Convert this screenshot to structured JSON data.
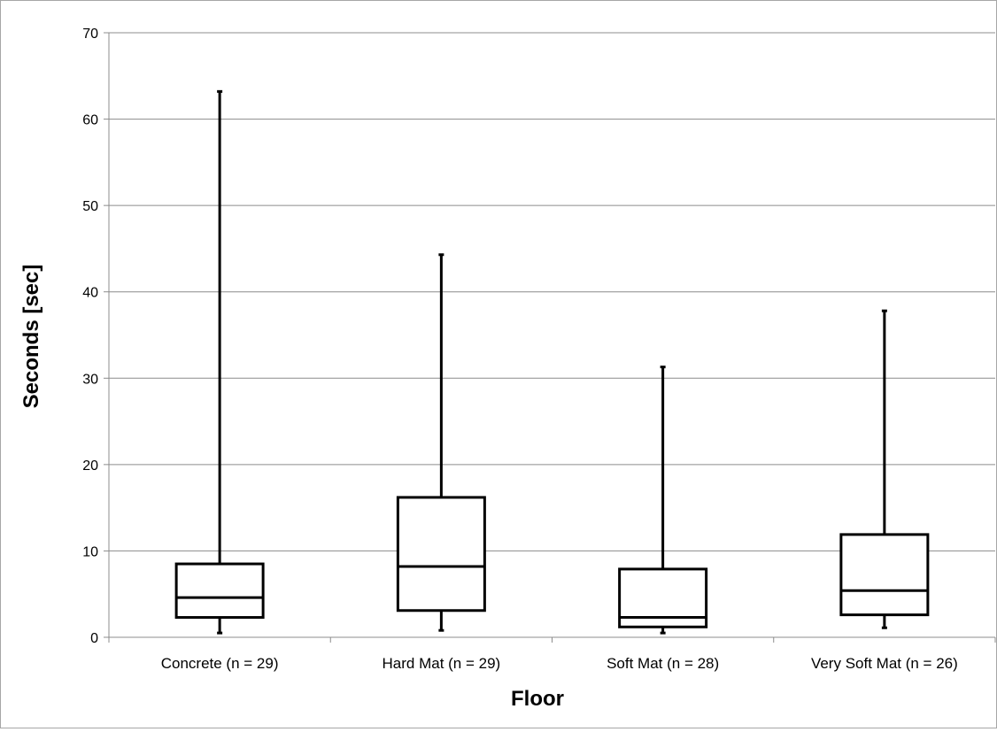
{
  "chart_data": {
    "type": "box",
    "title": "",
    "xlabel": "Floor",
    "ylabel": "Seconds [sec]",
    "ylim": [
      0,
      70
    ],
    "yticks": [
      0,
      10,
      20,
      30,
      40,
      50,
      60,
      70
    ],
    "grid": true,
    "legend": "none",
    "categories": [
      "Concrete (n = 29)",
      "Hard Mat (n = 29)",
      "Soft Mat (n = 28)",
      "Very Soft Mat (n = 26)"
    ],
    "boxes": [
      {
        "min": 0.5,
        "q1": 2.3,
        "median": 4.6,
        "q3": 8.5,
        "max": 63.2
      },
      {
        "min": 0.8,
        "q1": 3.1,
        "median": 8.2,
        "q3": 16.2,
        "max": 44.3
      },
      {
        "min": 0.5,
        "q1": 1.2,
        "median": 2.3,
        "q3": 7.9,
        "max": 31.3
      },
      {
        "min": 1.1,
        "q1": 2.6,
        "median": 5.4,
        "q3": 11.9,
        "max": 37.8
      }
    ],
    "colors": {
      "box_stroke": "#000000",
      "grid": "#8c8c8c",
      "axis": "#8c8c8c"
    }
  }
}
